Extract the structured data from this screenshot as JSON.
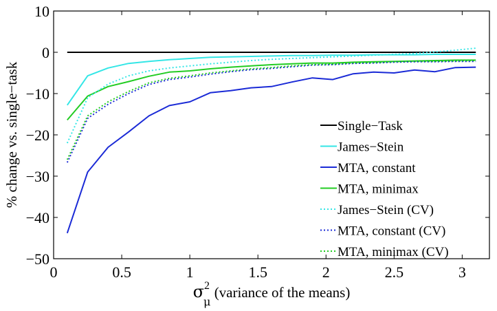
{
  "chart_data": {
    "type": "line",
    "title": "",
    "xlabel_symbol": "σ",
    "xlabel_sup": "2",
    "xlabel_sub": "μ",
    "xlabel_text": " (variance of the means)",
    "ylabel": "% change vs. single−task",
    "xlim": [
      0,
      3.2
    ],
    "ylim": [
      -50,
      10
    ],
    "xticks": [
      0,
      0.5,
      1,
      1.5,
      2,
      2.5,
      3
    ],
    "xtick_labels": [
      "0",
      "0.5",
      "1",
      "1.5",
      "2",
      "2.5",
      "3"
    ],
    "yticks": [
      -50,
      -40,
      -30,
      -20,
      -10,
      0,
      10
    ],
    "ytick_labels": [
      "−50",
      "−40",
      "−30",
      "−20",
      "−10",
      "0",
      "10"
    ],
    "grid": false,
    "legend_position": "bottom-right",
    "x": [
      0.1,
      0.25,
      0.4,
      0.55,
      0.7,
      0.85,
      1.0,
      1.15,
      1.3,
      1.45,
      1.6,
      1.75,
      1.9,
      2.05,
      2.2,
      2.35,
      2.5,
      2.65,
      2.8,
      2.95,
      3.1
    ],
    "series": [
      {
        "name": "Single−Task",
        "color": "#000000",
        "dash": "solid",
        "values": [
          0,
          0,
          0,
          0,
          0,
          0,
          0,
          0,
          0,
          0,
          0,
          0,
          0,
          0,
          0,
          0,
          0,
          0,
          0,
          0,
          0
        ]
      },
      {
        "name": "James−Stein",
        "color": "#33e6e6",
        "dash": "solid",
        "values": [
          -12.8,
          -5.7,
          -3.8,
          -2.7,
          -2.2,
          -1.8,
          -1.5,
          -1.2,
          -1.1,
          -1.0,
          -0.9,
          -0.8,
          -0.8,
          -0.7,
          -0.7,
          -0.6,
          -0.6,
          -0.6,
          -0.5,
          -0.5,
          -0.5
        ]
      },
      {
        "name": "MTA, constant",
        "color": "#1a2ad6",
        "dash": "solid",
        "values": [
          -43.8,
          -29.0,
          -23.0,
          -19.3,
          -15.4,
          -12.9,
          -12.0,
          -9.8,
          -9.3,
          -8.6,
          -8.3,
          -7.2,
          -6.2,
          -6.6,
          -5.2,
          -4.8,
          -5.0,
          -4.3,
          -4.7,
          -3.7,
          -3.6
        ]
      },
      {
        "name": "MTA, minimax",
        "color": "#22cc22",
        "dash": "solid",
        "values": [
          -16.4,
          -10.6,
          -8.3,
          -7.1,
          -5.8,
          -4.8,
          -4.5,
          -4.0,
          -3.6,
          -3.3,
          -3.0,
          -2.8,
          -2.6,
          -2.6,
          -2.4,
          -2.3,
          -2.2,
          -2.1,
          -2.0,
          -1.9,
          -1.9
        ]
      },
      {
        "name": "James−Stein (CV)",
        "color": "#33e6e6",
        "dash": "dotted",
        "values": [
          -22.0,
          -11.0,
          -7.7,
          -5.7,
          -4.5,
          -3.8,
          -3.3,
          -2.8,
          -2.4,
          -2.0,
          -1.7,
          -1.5,
          -1.3,
          -1.1,
          -0.9,
          -0.7,
          -0.5,
          -0.3,
          0.1,
          0.5,
          1.0
        ]
      },
      {
        "name": "MTA, constant (CV)",
        "color": "#1a2ad6",
        "dash": "dotted",
        "values": [
          -26.7,
          -16.0,
          -12.6,
          -10.0,
          -7.8,
          -6.6,
          -6.0,
          -5.3,
          -4.7,
          -4.2,
          -3.9,
          -3.5,
          -3.1,
          -3.0,
          -2.7,
          -2.6,
          -2.4,
          -2.3,
          -2.3,
          -2.2,
          -2.2
        ]
      },
      {
        "name": "MTA, minimax (CV)",
        "color": "#22cc22",
        "dash": "dotted",
        "values": [
          -26.0,
          -15.4,
          -12.0,
          -9.5,
          -7.4,
          -6.3,
          -5.7,
          -5.0,
          -4.5,
          -4.0,
          -3.7,
          -3.3,
          -3.0,
          -2.9,
          -2.6,
          -2.5,
          -2.3,
          -2.2,
          -2.2,
          -2.1,
          -2.0
        ]
      }
    ]
  }
}
